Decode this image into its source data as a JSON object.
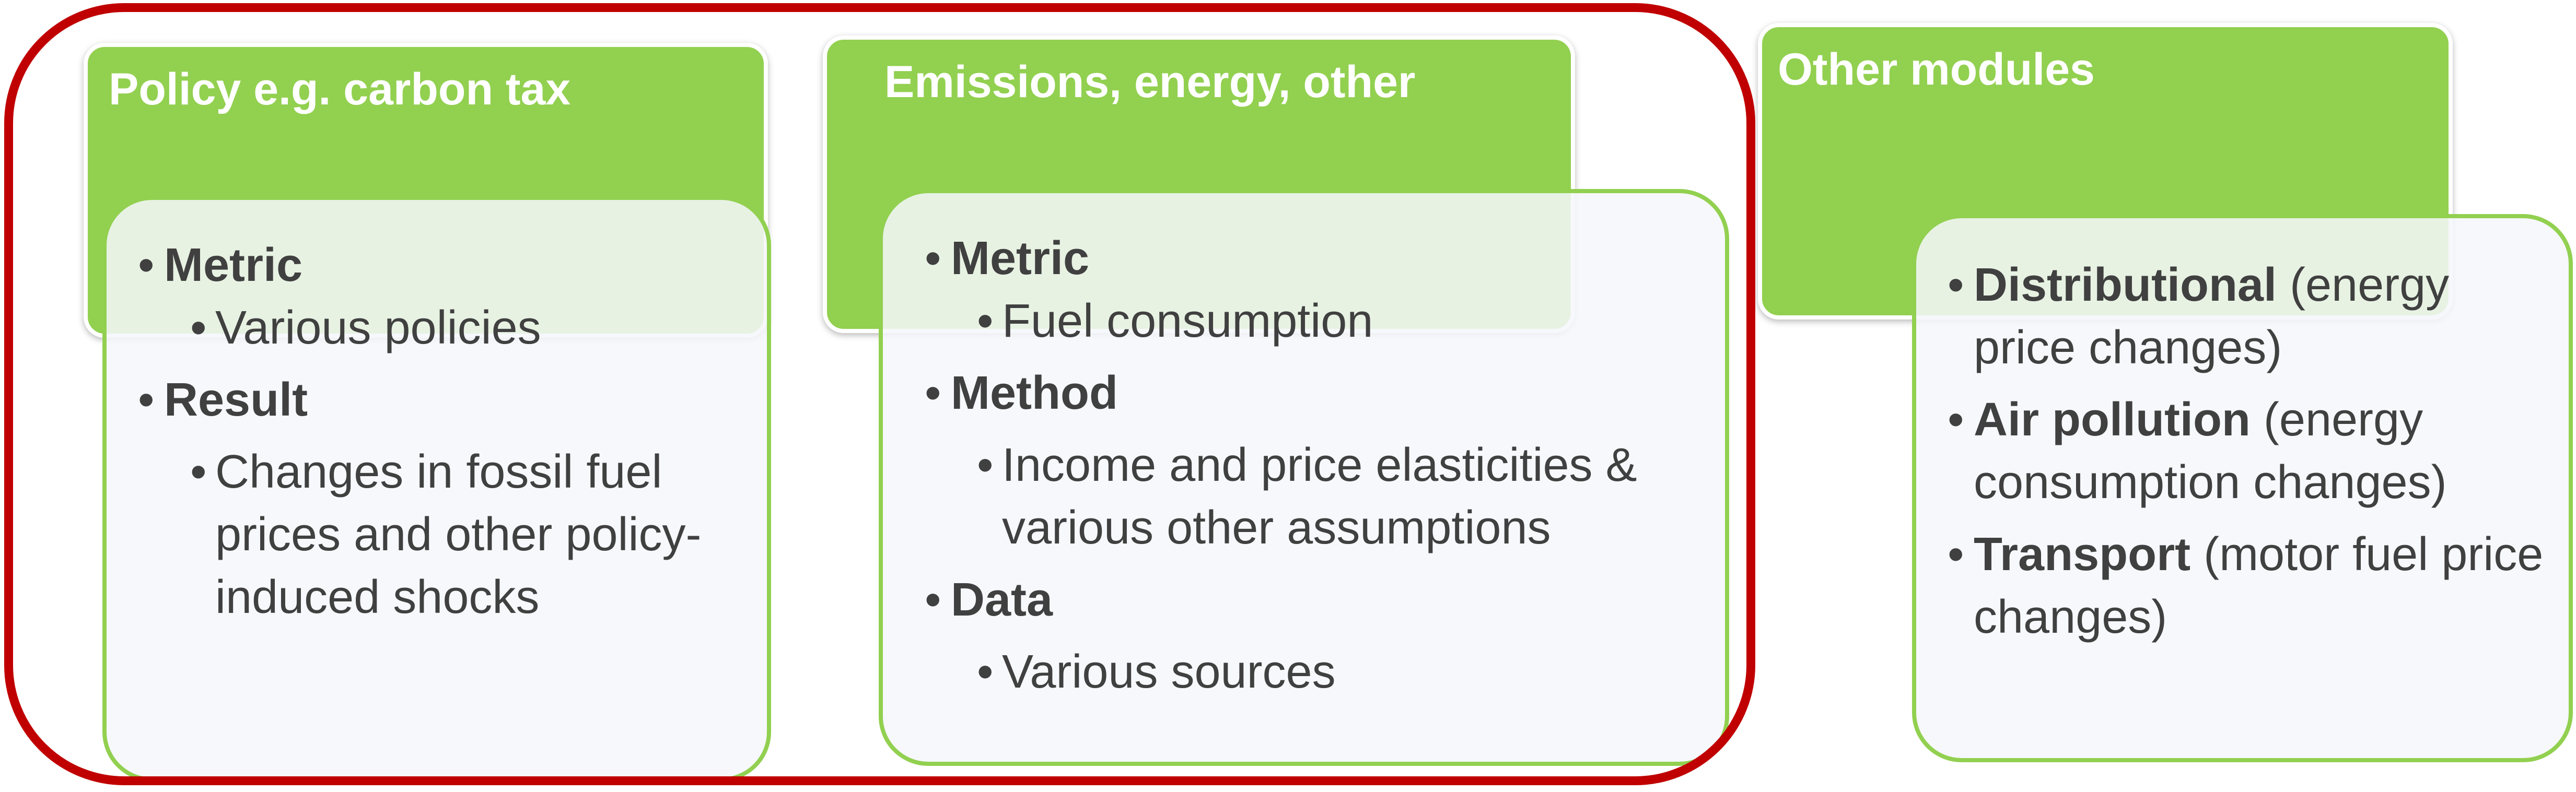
{
  "policy": {
    "title": "Policy e.g. carbon tax",
    "metric_label": "Metric",
    "metric_value": "Various policies",
    "result_label": "Result",
    "result_value": "Changes in fossil fuel prices and other policy-induced shocks"
  },
  "emissions": {
    "title": "Emissions, energy, other",
    "metric_label": "Metric",
    "metric_value": "Fuel consumption",
    "method_label": "Method",
    "method_value": "Income and price elasticities & various other assumptions",
    "data_label": "Data",
    "data_value": "Various sources"
  },
  "modules": {
    "title": "Other modules",
    "items": [
      {
        "label": "Distributional",
        "detail": "(energy price changes)"
      },
      {
        "label": "Air pollution",
        "detail": "(energy consumption changes)"
      },
      {
        "label": "Transport",
        "detail": "(motor fuel price changes)"
      }
    ]
  },
  "colors": {
    "green": "#92d050",
    "red": "#c00000",
    "text": "#404040",
    "card_bg": "#f5f7fc"
  }
}
